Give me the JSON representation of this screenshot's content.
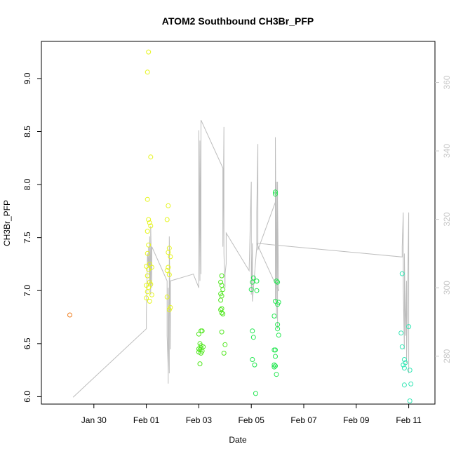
{
  "chart_data": {
    "type": "scatter",
    "title": "ATOM2 Southbound CH3Br_PFP",
    "xlabel": "Date",
    "ylabel": "CH3Br_PFP",
    "x_unit": "days",
    "xlim": [
      "2017-01-28T00:00",
      "2017-02-12T00:00"
    ],
    "ylim": [
      5.93,
      9.35
    ],
    "x_ticks": [
      {
        "label": "Jan 30",
        "value": "2017-01-30"
      },
      {
        "label": "Feb 01",
        "value": "2017-02-01"
      },
      {
        "label": "Feb 03",
        "value": "2017-02-03"
      },
      {
        "label": "Feb 05",
        "value": "2017-02-05"
      },
      {
        "label": "Feb 07",
        "value": "2017-02-07"
      },
      {
        "label": "Feb 09",
        "value": "2017-02-09"
      },
      {
        "label": "Feb 11",
        "value": "2017-02-11"
      }
    ],
    "y_ticks": [
      6.0,
      6.5,
      7.0,
      7.5,
      8.0,
      8.5,
      9.0
    ],
    "y2_ticks": [
      280,
      300,
      320,
      340,
      360
    ],
    "y2lim": [
      266,
      372
    ],
    "colors": {
      "orange": "#f07d1e",
      "yellow": "#e6f51e",
      "lime": "#50e61e",
      "green": "#23e650",
      "cyan": "#32e6b4",
      "line": "#bdbdbd"
    },
    "series": [
      {
        "color_key": "orange",
        "points": [
          [
            "2017-01-29T02:00",
            6.77
          ]
        ]
      },
      {
        "color_key": "yellow",
        "points": [
          [
            "2017-02-01T02:00",
            9.25
          ],
          [
            "2017-02-01T01:00",
            9.06
          ],
          [
            "2017-02-01T04:00",
            8.26
          ],
          [
            "2017-02-01T01:00",
            7.86
          ],
          [
            "2017-02-01T02:00",
            7.67
          ],
          [
            "2017-02-01T03:00",
            7.64
          ],
          [
            "2017-02-01T04:00",
            7.61
          ],
          [
            "2017-02-01T01:00",
            7.56
          ],
          [
            "2017-02-01T02:00",
            7.43
          ],
          [
            "2017-02-01T01:00",
            7.35
          ],
          [
            "2017-02-01T03:00",
            7.25
          ],
          [
            "2017-02-01T00:00",
            7.23
          ],
          [
            "2017-02-01T02:00",
            7.2
          ],
          [
            "2017-02-01T05:00",
            7.22
          ],
          [
            "2017-02-01T01:00",
            7.14
          ],
          [
            "2017-02-01T03:00",
            7.08
          ],
          [
            "2017-02-01T00:00",
            7.05
          ],
          [
            "2017-02-01T02:00",
            7.03
          ],
          [
            "2017-02-01T04:00",
            7.06
          ],
          [
            "2017-02-01T01:00",
            6.99
          ],
          [
            "2017-02-01T05:00",
            6.96
          ],
          [
            "2017-02-01T00:00",
            6.93
          ],
          [
            "2017-02-01T03:00",
            6.9
          ],
          [
            "2017-02-01T20:00",
            7.8
          ],
          [
            "2017-02-01T19:00",
            7.67
          ],
          [
            "2017-02-01T21:00",
            7.4
          ],
          [
            "2017-02-01T22:00",
            7.32
          ],
          [
            "2017-02-01T20:00",
            7.36
          ],
          [
            "2017-02-01T20:00",
            7.22
          ],
          [
            "2017-02-01T19:00",
            7.19
          ],
          [
            "2017-02-01T21:00",
            7.15
          ],
          [
            "2017-02-01T19:00",
            6.94
          ],
          [
            "2017-02-01T22:00",
            6.84
          ],
          [
            "2017-02-01T21:00",
            6.82
          ]
        ]
      },
      {
        "color_key": "lime",
        "points": [
          [
            "2017-02-03T02:00",
            6.62
          ],
          [
            "2017-02-03T03:00",
            6.62
          ],
          [
            "2017-02-03T00:00",
            6.59
          ],
          [
            "2017-02-03T01:00",
            6.5
          ],
          [
            "2017-02-03T02:00",
            6.48
          ],
          [
            "2017-02-03T04:00",
            6.47
          ],
          [
            "2017-02-03T02:00",
            6.46
          ],
          [
            "2017-02-03T00:00",
            6.45
          ],
          [
            "2017-02-03T01:00",
            6.44
          ],
          [
            "2017-02-03T03:00",
            6.43
          ],
          [
            "2017-02-03T00:00",
            6.42
          ],
          [
            "2017-02-03T02:00",
            6.41
          ],
          [
            "2017-02-03T01:00",
            6.31
          ]
        ]
      },
      {
        "color_key": "lime",
        "points": [
          [
            "2017-02-03T21:00",
            7.14
          ],
          [
            "2017-02-03T20:00",
            7.08
          ],
          [
            "2017-02-03T21:00",
            7.05
          ],
          [
            "2017-02-03T22:00",
            7.01
          ],
          [
            "2017-02-03T20:00",
            6.97
          ],
          [
            "2017-02-03T21:00",
            6.95
          ],
          [
            "2017-02-03T20:00",
            6.91
          ],
          [
            "2017-02-03T21:00",
            6.83
          ],
          [
            "2017-02-03T20:00",
            6.82
          ],
          [
            "2017-02-03T21:00",
            6.79
          ],
          [
            "2017-02-03T22:00",
            6.78
          ],
          [
            "2017-02-03T21:00",
            6.61
          ],
          [
            "2017-02-04T00:00",
            6.49
          ],
          [
            "2017-02-03T23:00",
            6.41
          ]
        ]
      },
      {
        "color_key": "green",
        "points": [
          [
            "2017-02-05T02:00",
            7.12
          ],
          [
            "2017-02-05T05:00",
            7.09
          ],
          [
            "2017-02-05T01:00",
            7.08
          ],
          [
            "2017-02-05T00:00",
            7.01
          ],
          [
            "2017-02-05T05:00",
            7.0
          ],
          [
            "2017-02-05T01:00",
            6.62
          ],
          [
            "2017-02-05T02:00",
            6.56
          ],
          [
            "2017-02-05T01:00",
            6.35
          ],
          [
            "2017-02-05T03:00",
            6.3
          ],
          [
            "2017-02-05T04:00",
            6.03
          ]
        ]
      },
      {
        "color_key": "green",
        "points": [
          [
            "2017-02-05T22:00",
            7.93
          ],
          [
            "2017-02-05T22:00",
            7.91
          ],
          [
            "2017-02-05T23:00",
            7.09
          ],
          [
            "2017-02-06T00:00",
            7.08
          ],
          [
            "2017-02-05T22:00",
            6.9
          ],
          [
            "2017-02-06T01:00",
            6.89
          ],
          [
            "2017-02-06T00:00",
            6.87
          ],
          [
            "2017-02-05T21:00",
            6.76
          ],
          [
            "2017-02-06T00:00",
            6.68
          ],
          [
            "2017-02-06T00:00",
            6.64
          ],
          [
            "2017-02-06T01:00",
            6.58
          ],
          [
            "2017-02-05T22:00",
            6.44
          ],
          [
            "2017-02-05T21:00",
            6.44
          ],
          [
            "2017-02-05T22:00",
            6.38
          ],
          [
            "2017-02-05T21:00",
            6.3
          ],
          [
            "2017-02-05T22:00",
            6.29
          ],
          [
            "2017-02-05T21:00",
            6.28
          ],
          [
            "2017-02-05T23:00",
            6.21
          ]
        ]
      },
      {
        "color_key": "cyan",
        "points": [
          [
            "2017-02-10T18:00",
            7.16
          ],
          [
            "2017-02-11T00:00",
            6.66
          ],
          [
            "2017-02-10T17:00",
            6.6
          ],
          [
            "2017-02-10T18:00",
            6.47
          ],
          [
            "2017-02-10T20:00",
            6.35
          ],
          [
            "2017-02-10T21:00",
            6.32
          ],
          [
            "2017-02-10T19:00",
            6.3
          ],
          [
            "2017-02-10T20:00",
            6.27
          ],
          [
            "2017-02-11T01:00",
            6.25
          ],
          [
            "2017-02-11T02:00",
            6.12
          ],
          [
            "2017-02-10T20:00",
            6.11
          ],
          [
            "2017-02-11T01:00",
            5.96
          ]
        ]
      }
    ],
    "secondary_line": {
      "axis": "right",
      "points": [
        [
          "2017-01-29T05:00",
          268
        ],
        [
          "2017-02-01T00:00",
          288
        ],
        [
          "2017-02-01T00:00",
          292
        ],
        [
          "2017-02-01T01:00",
          310
        ],
        [
          "2017-02-01T02:00",
          306
        ],
        [
          "2017-02-01T02:00",
          312
        ],
        [
          "2017-02-01T03:00",
          301
        ],
        [
          "2017-02-01T03:00",
          315
        ],
        [
          "2017-02-01T04:00",
          298
        ],
        [
          "2017-02-01T04:00",
          318
        ],
        [
          "2017-02-01T05:00",
          300
        ],
        [
          "2017-02-01T05:00",
          312
        ],
        [
          "2017-02-01T19:00",
          302
        ],
        [
          "2017-02-01T19:00",
          286
        ],
        [
          "2017-02-01T20:00",
          276
        ],
        [
          "2017-02-01T20:00",
          272
        ],
        [
          "2017-02-01T20:00",
          300
        ],
        [
          "2017-02-01T21:00",
          275
        ],
        [
          "2017-02-01T21:00",
          315
        ],
        [
          "2017-02-01T22:00",
          282
        ],
        [
          "2017-02-01T22:00",
          302
        ],
        [
          "2017-02-02T19:00",
          304
        ],
        [
          "2017-02-03T00:00",
          300
        ],
        [
          "2017-02-03T00:00",
          346
        ],
        [
          "2017-02-03T01:00",
          302
        ],
        [
          "2017-02-03T01:00",
          343
        ],
        [
          "2017-02-03T02:00",
          304
        ],
        [
          "2017-02-03T02:00",
          349
        ],
        [
          "2017-02-03T22:00",
          335
        ],
        [
          "2017-02-03T22:00",
          312
        ],
        [
          "2017-02-03T23:00",
          347
        ],
        [
          "2017-02-03T23:00",
          310
        ],
        [
          "2017-02-04T00:00",
          300
        ],
        [
          "2017-02-04T00:00",
          304
        ],
        [
          "2017-02-04T01:00",
          307
        ],
        [
          "2017-02-04T01:00",
          316
        ],
        [
          "2017-02-04T22:00",
          305
        ],
        [
          "2017-02-05T00:00",
          331
        ],
        [
          "2017-02-05T00:00",
          298
        ],
        [
          "2017-02-05T01:00",
          313
        ],
        [
          "2017-02-05T01:00",
          296
        ],
        [
          "2017-02-05T05:00",
          312
        ],
        [
          "2017-02-05T05:00",
          322
        ],
        [
          "2017-02-05T06:00",
          342
        ],
        [
          "2017-02-05T06:00",
          320
        ],
        [
          "2017-02-05T06:00",
          311
        ],
        [
          "2017-02-05T22:00",
          325
        ],
        [
          "2017-02-05T22:00",
          296
        ],
        [
          "2017-02-05T22:00",
          344
        ],
        [
          "2017-02-05T23:00",
          296
        ],
        [
          "2017-02-05T23:00",
          331
        ],
        [
          "2017-02-05T23:00",
          291
        ],
        [
          "2017-02-06T00:00",
          331
        ],
        [
          "2017-02-06T00:00",
          288
        ],
        [
          "2017-02-06T00:00",
          326
        ],
        [
          "2017-02-06T01:00",
          299
        ],
        [
          "2017-02-05T05:00",
          313
        ],
        [
          "2017-02-10T18:00",
          309
        ],
        [
          "2017-02-10T18:00",
          312
        ],
        [
          "2017-02-10T19:00",
          322
        ],
        [
          "2017-02-10T19:00",
          300
        ],
        [
          "2017-02-10T20:00",
          282
        ],
        [
          "2017-02-10T20:00",
          310
        ],
        [
          "2017-02-10T21:00",
          286
        ],
        [
          "2017-02-10T22:00",
          302
        ],
        [
          "2017-02-10T22:00",
          278
        ],
        [
          "2017-02-11T00:00",
          322
        ],
        [
          "2017-02-11T00:00",
          275
        ]
      ]
    },
    "grid": false,
    "legend": "none"
  }
}
